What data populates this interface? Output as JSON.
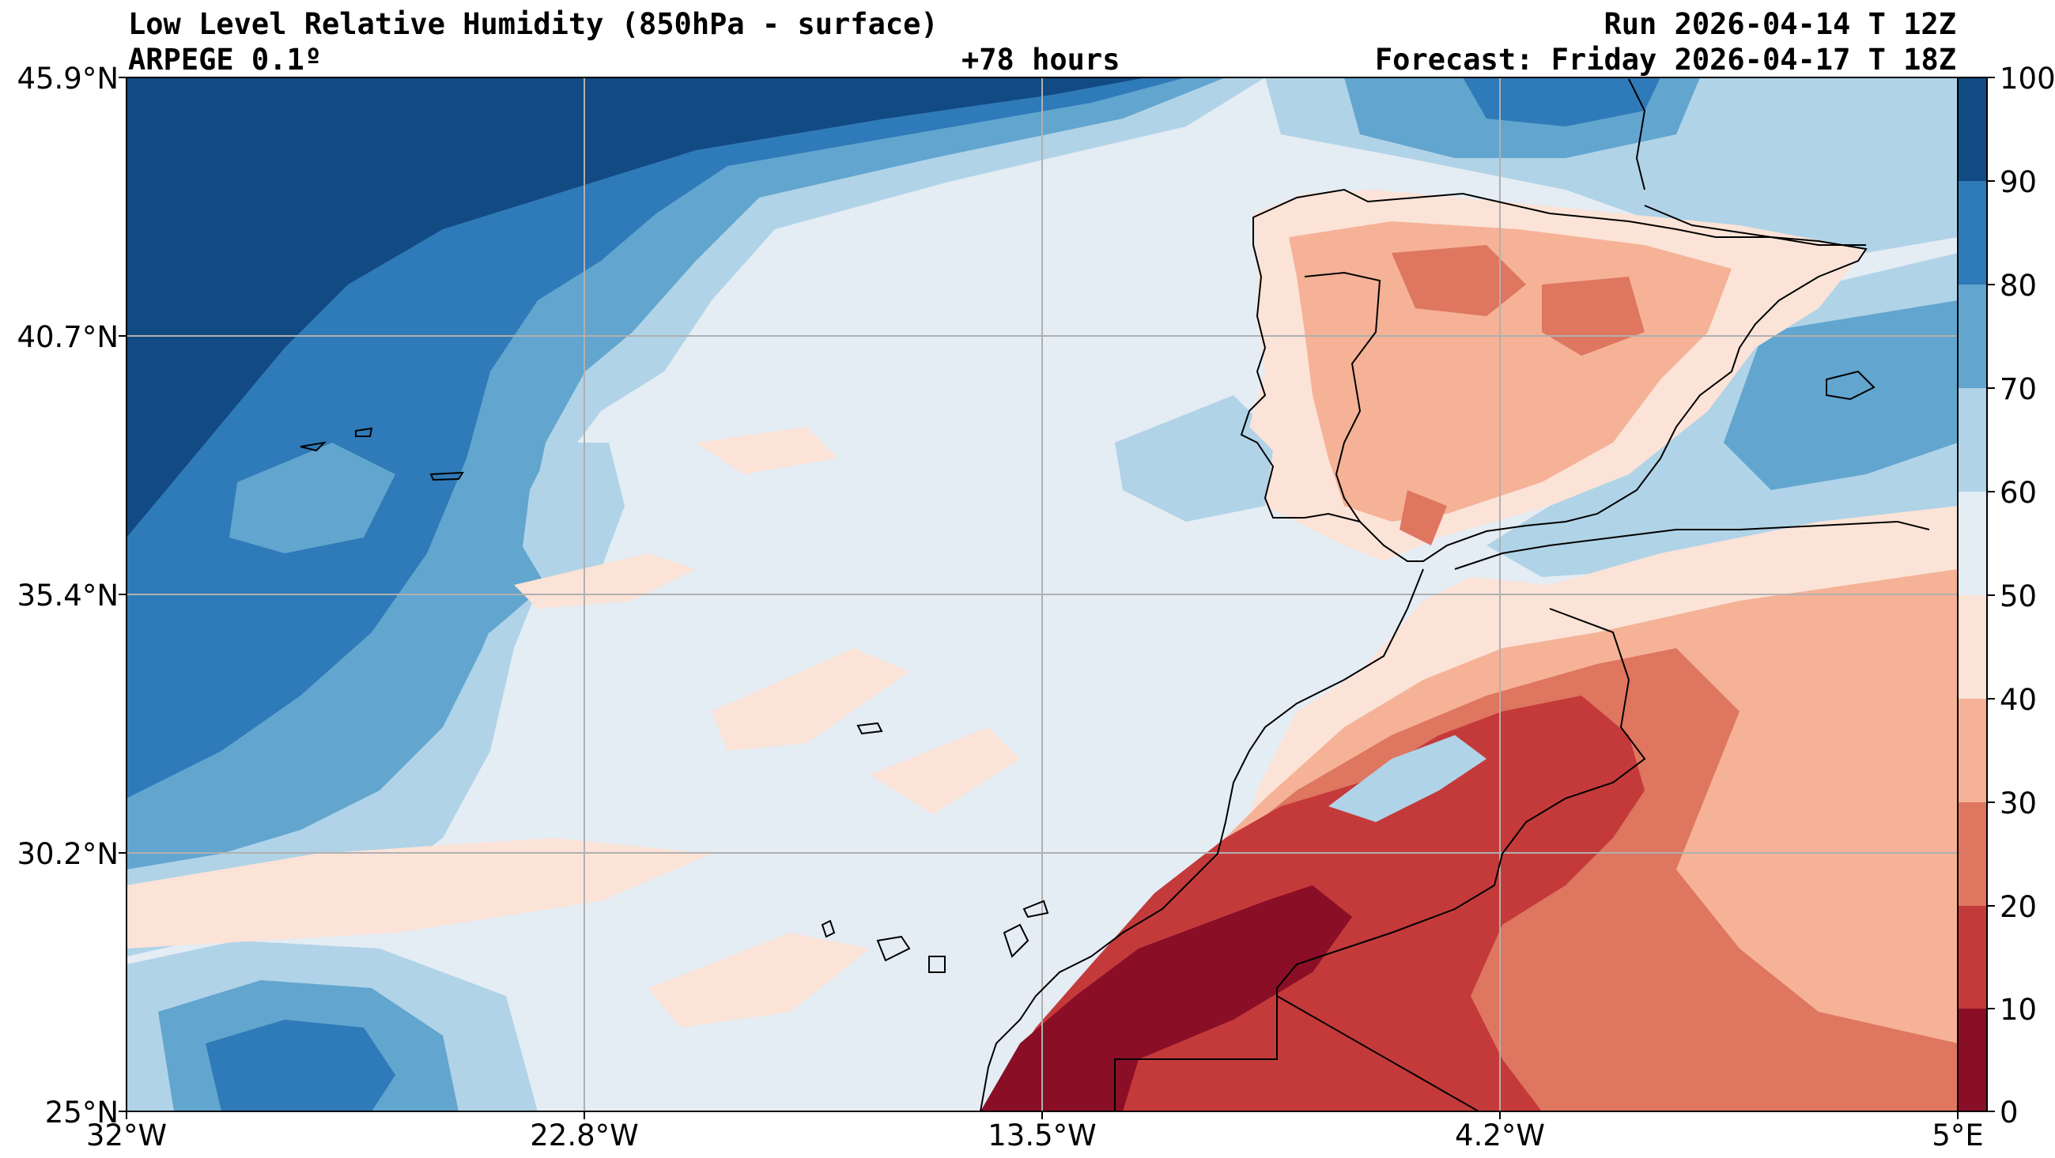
{
  "header": {
    "title": "Low Level Relative Humidity (850hPa - surface)",
    "model": "ARPEGE 0.1º",
    "lead_time": "+78 hours",
    "run": "Run 2026-04-14 T 12Z",
    "forecast": "Forecast: Friday 2026-04-17 T 18Z"
  },
  "map": {
    "lat_labels": [
      "45.9°N",
      "40.7°N",
      "35.4°N",
      "30.2°N",
      "25°N"
    ],
    "lon_labels": [
      "32°W",
      "22.8°W",
      "13.5°W",
      "4.2°W",
      "5°E"
    ]
  },
  "colorbar": {
    "ticks": [
      "100",
      "90",
      "80",
      "70",
      "60",
      "50",
      "40",
      "30",
      "20",
      "10",
      "0"
    ],
    "bins": [
      {
        "range": "90-100",
        "color": "#124a83"
      },
      {
        "range": "80-90",
        "color": "#2f7ab8"
      },
      {
        "range": "70-80",
        "color": "#62a5cf"
      },
      {
        "range": "60-70",
        "color": "#b0d3e7"
      },
      {
        "range": "50-60",
        "color": "#e4ecf4"
      },
      {
        "range": "40-50",
        "color": "#fbe3d7"
      },
      {
        "range": "30-40",
        "color": "#f5b297"
      },
      {
        "range": "20-30",
        "color": "#de7660"
      },
      {
        "range": "10-20",
        "color": "#c43a3a"
      },
      {
        "range": "0-10",
        "color": "#8a0e26"
      }
    ]
  }
}
